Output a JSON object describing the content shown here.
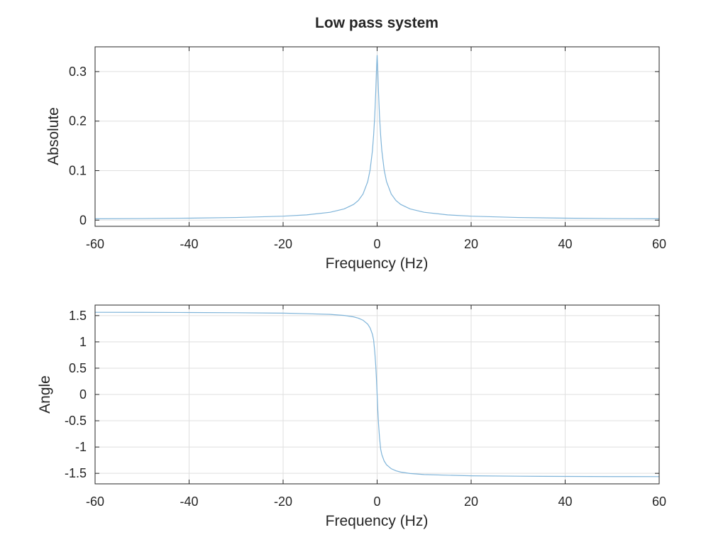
{
  "figure_title": "Low pass system",
  "chart_data": [
    {
      "type": "line",
      "title": "",
      "xlabel": "Frequency (Hz)",
      "ylabel": "Absolute",
      "xlim": [
        -60,
        60
      ],
      "ylim": [
        -0.0125,
        0.35
      ],
      "xticks": [
        -60,
        -40,
        -20,
        0,
        20,
        40,
        60
      ],
      "xtick_labels": [
        "-60",
        "-40",
        "-20",
        "0",
        "20",
        "40",
        "60"
      ],
      "yticks": [
        0,
        0.1,
        0.2,
        0.3
      ],
      "ytick_labels": [
        "0",
        "0.1",
        "0.2",
        "0.3"
      ],
      "grid": true,
      "legend": "none",
      "series_color": "#7fb4d9",
      "series": [
        {
          "x": [
            -60,
            -50,
            -40,
            -30,
            -20,
            -15,
            -10,
            -7,
            -5,
            -4,
            -3,
            -2,
            -1.5,
            -1,
            -0.75,
            -0.5,
            -0.3,
            -0.15,
            0,
            0.15,
            0.3,
            0.5,
            0.75,
            1,
            1.5,
            2,
            3,
            4,
            5,
            7,
            10,
            15,
            20,
            30,
            40,
            50,
            60
          ],
          "y": [
            0.0027,
            0.0032,
            0.004,
            0.0053,
            0.008,
            0.0106,
            0.0159,
            0.0227,
            0.0318,
            0.0397,
            0.0527,
            0.0778,
            0.1012,
            0.1401,
            0.1712,
            0.2115,
            0.2573,
            0.3001,
            0.3333,
            0.3001,
            0.2573,
            0.2115,
            0.1712,
            0.1401,
            0.1012,
            0.0778,
            0.0527,
            0.0397,
            0.0318,
            0.0227,
            0.0159,
            0.0106,
            0.008,
            0.0053,
            0.004,
            0.0032,
            0.0027
          ]
        }
      ]
    },
    {
      "type": "line",
      "title": "",
      "xlabel": "Frequency (Hz)",
      "ylabel": "Angle",
      "xlim": [
        -60,
        60
      ],
      "ylim": [
        -1.7,
        1.7
      ],
      "xticks": [
        -60,
        -40,
        -20,
        0,
        20,
        40,
        60
      ],
      "xtick_labels": [
        "-60",
        "-40",
        "-20",
        "0",
        "20",
        "40",
        "60"
      ],
      "yticks": [
        -1.5,
        -1,
        -0.5,
        0,
        0.5,
        1,
        1.5
      ],
      "ytick_labels": [
        "-1.5",
        "-1",
        "-0.5",
        "0",
        "0.5",
        "1",
        "1.5"
      ],
      "grid": true,
      "legend": "none",
      "series_color": "#7fb4d9",
      "series": [
        {
          "x": [
            -60,
            -50,
            -40,
            -30,
            -20,
            -15,
            -10,
            -7,
            -5,
            -4,
            -3,
            -2,
            -1.5,
            -1,
            -0.75,
            -0.5,
            -0.3,
            -0.15,
            0,
            0.15,
            0.3,
            0.5,
            0.75,
            1,
            1.5,
            2,
            3,
            4,
            5,
            7,
            10,
            15,
            20,
            30,
            40,
            50,
            60
          ],
          "y": [
            1.5628,
            1.5613,
            1.5588,
            1.5543,
            1.5464,
            1.5354,
            1.5232,
            1.5025,
            1.4755,
            1.4516,
            1.4121,
            1.3365,
            1.2661,
            1.1443,
            1.0381,
            0.8084,
            0.5609,
            0.3042,
            0,
            -0.3042,
            -0.5609,
            -0.8084,
            -1.0381,
            -1.1443,
            -1.2661,
            -1.3365,
            -1.4121,
            -1.4516,
            -1.4755,
            -1.5025,
            -1.5232,
            -1.5354,
            -1.5464,
            -1.5543,
            -1.5588,
            -1.5613,
            -1.5628
          ]
        }
      ]
    }
  ]
}
